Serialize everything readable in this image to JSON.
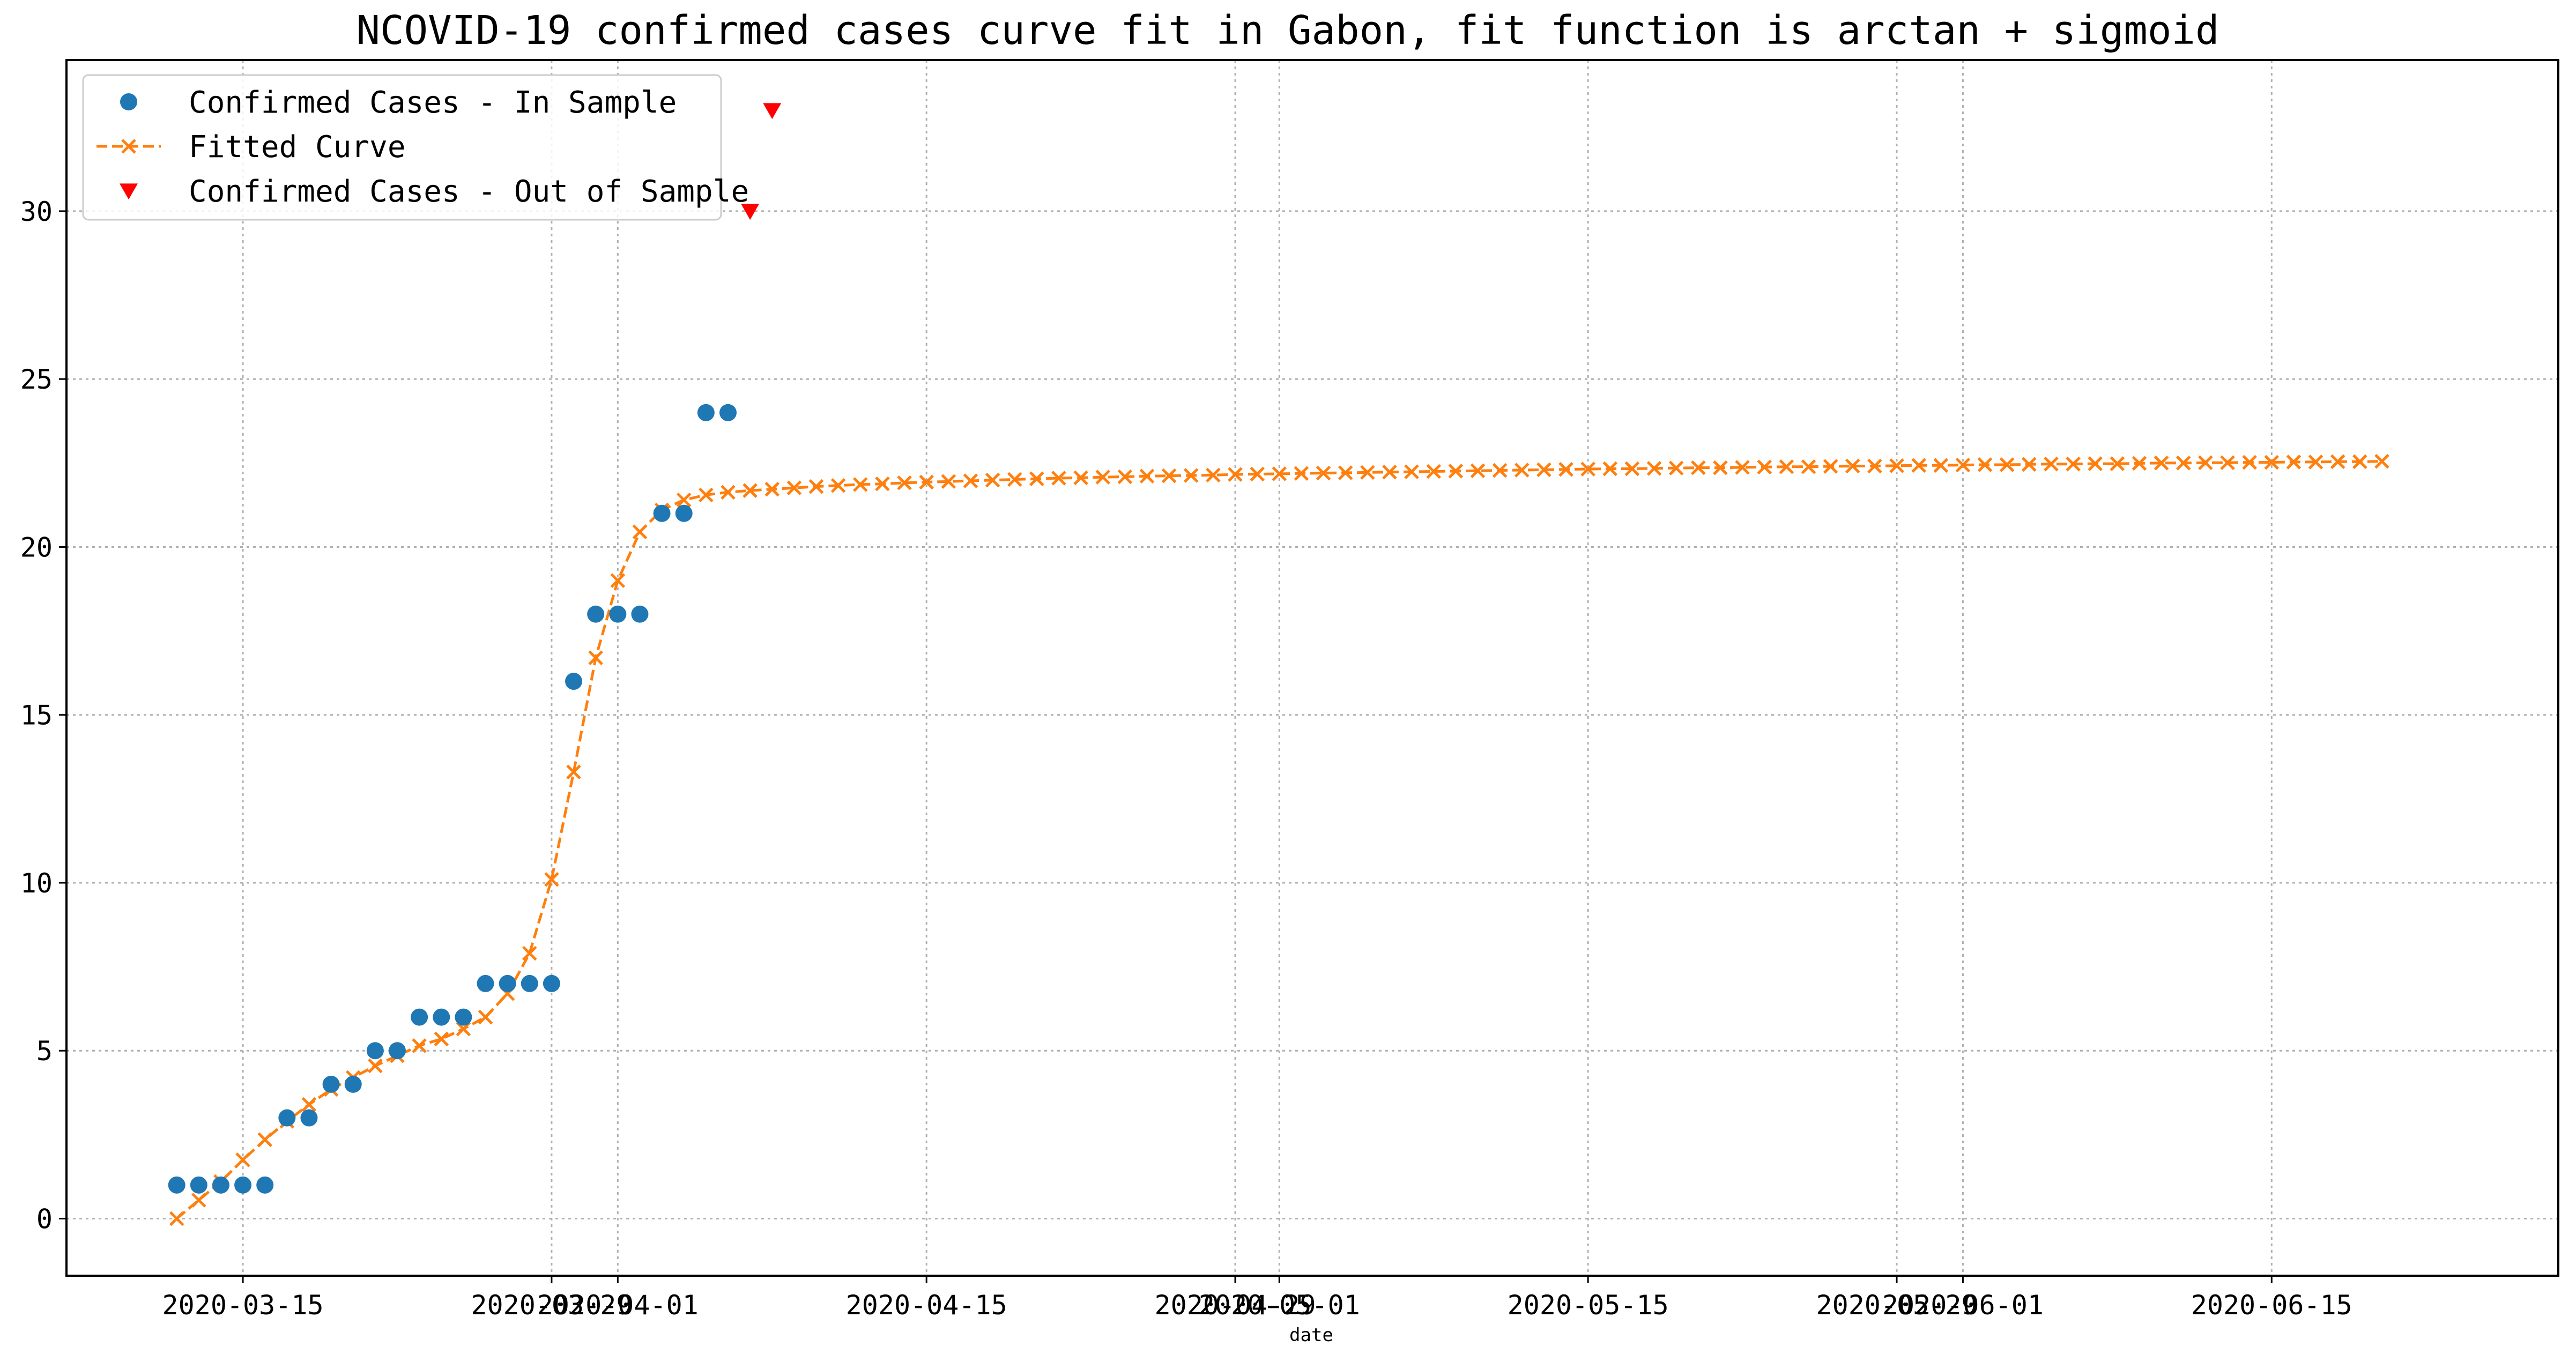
{
  "chart_data": {
    "type": "line",
    "title": "NCOVID-19 confirmed cases curve fit in Gabon, fit function is arctan + sigmoid",
    "xlabel": "date",
    "ylabel": "",
    "x_type": "date",
    "xlim": [
      "2020-03-07",
      "2020-06-28"
    ],
    "ylim": [
      -1.7,
      34.5
    ],
    "grid": true,
    "legend_position": "top-left",
    "x_ticks": [
      {
        "date": "2020-03-15",
        "label": "2020-03-15"
      },
      {
        "date": "2020-03-29",
        "label": "2020-03-29"
      },
      {
        "date": "2020-04-01",
        "label": "2020-04-01"
      },
      {
        "date": "2020-04-15",
        "label": "2020-04-15"
      },
      {
        "date": "2020-04-29",
        "label": "2020-04-29"
      },
      {
        "date": "2020-05-01",
        "label": "2020-05-01"
      },
      {
        "date": "2020-05-15",
        "label": "2020-05-15"
      },
      {
        "date": "2020-05-29",
        "label": "2020-05-29"
      },
      {
        "date": "2020-06-01",
        "label": "2020-06-01"
      },
      {
        "date": "2020-06-15",
        "label": "2020-06-15"
      }
    ],
    "y_ticks": [
      0,
      5,
      10,
      15,
      20,
      25,
      30
    ],
    "series": [
      {
        "name": "Confirmed Cases - In Sample",
        "style": "scatter-circle",
        "color": "#1f77b4",
        "x": [
          "2020-03-12",
          "2020-03-13",
          "2020-03-14",
          "2020-03-15",
          "2020-03-16",
          "2020-03-17",
          "2020-03-18",
          "2020-03-19",
          "2020-03-20",
          "2020-03-21",
          "2020-03-22",
          "2020-03-23",
          "2020-03-24",
          "2020-03-25",
          "2020-03-26",
          "2020-03-27",
          "2020-03-28",
          "2020-03-29",
          "2020-03-30",
          "2020-03-31",
          "2020-04-01",
          "2020-04-02",
          "2020-04-03",
          "2020-04-04",
          "2020-04-05",
          "2020-04-06"
        ],
        "y": [
          1,
          1,
          1,
          1,
          1,
          3,
          3,
          4,
          4,
          5,
          5,
          6,
          6,
          6,
          7,
          7,
          7,
          7,
          16,
          18,
          18,
          18,
          21,
          21,
          24,
          24
        ]
      },
      {
        "name": "Fitted Curve",
        "style": "dashed-line-x-marker",
        "color": "#ff7f0e",
        "x_start": "2020-03-12",
        "x_step_days": 1,
        "y": [
          0,
          0.55,
          1.1,
          1.75,
          2.35,
          2.9,
          3.4,
          3.85,
          4.2,
          4.55,
          4.85,
          5.15,
          5.35,
          5.65,
          6.0,
          6.7,
          7.9,
          10.1,
          13.3,
          16.7,
          19.0,
          20.45,
          21.1,
          21.4,
          21.55,
          21.63,
          21.68,
          21.72,
          21.76,
          21.8,
          21.83,
          21.86,
          21.88,
          21.91,
          21.93,
          21.95,
          21.97,
          21.99,
          22.01,
          22.03,
          22.05,
          22.06,
          22.08,
          22.09,
          22.11,
          22.12,
          22.13,
          22.14,
          22.16,
          22.17,
          22.18,
          22.19,
          22.2,
          22.21,
          22.22,
          22.23,
          22.24,
          22.25,
          22.26,
          22.27,
          22.28,
          22.29,
          22.3,
          22.31,
          22.32,
          22.33,
          22.33,
          22.34,
          22.35,
          22.36,
          22.36,
          22.37,
          22.38,
          22.39,
          22.39,
          22.4,
          22.41,
          22.41,
          22.42,
          22.43,
          22.43,
          22.44,
          22.45,
          22.45,
          22.46,
          22.47,
          22.47,
          22.48,
          22.48,
          22.49,
          22.5,
          22.5,
          22.51,
          22.51,
          22.52,
          22.52,
          22.53,
          22.53,
          22.54,
          22.54,
          22.55
        ]
      },
      {
        "name": "Confirmed Cases - Out of Sample",
        "style": "scatter-triangle-down",
        "color": "#ff0000",
        "x": [
          "2020-04-07",
          "2020-04-08"
        ],
        "y": [
          30,
          33
        ]
      }
    ]
  }
}
